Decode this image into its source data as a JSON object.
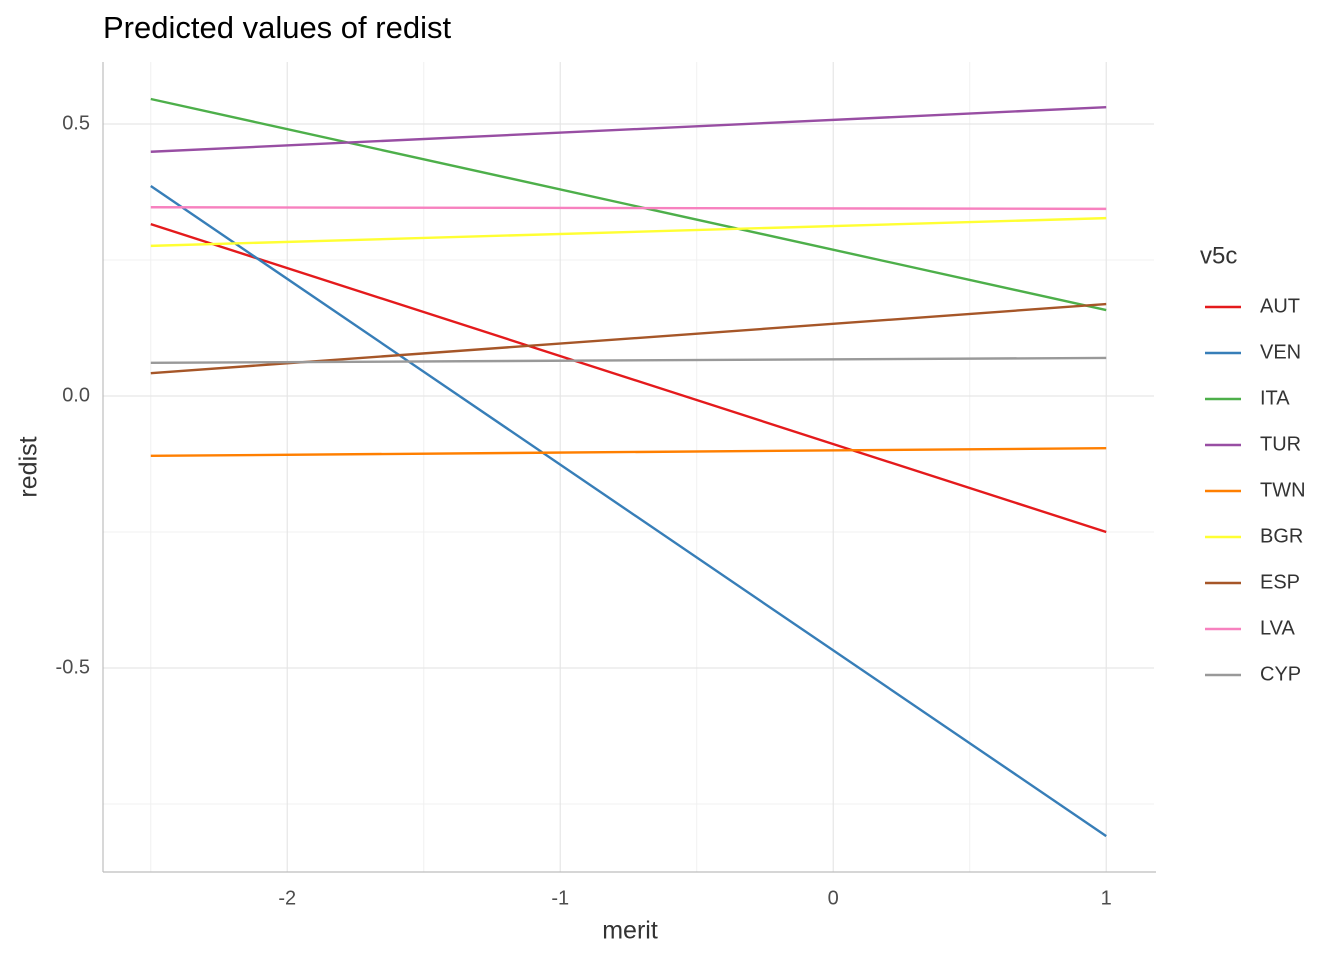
{
  "chart_data": {
    "type": "line",
    "title": "Predicted values of redist",
    "x_label": "merit",
    "y_label": "redist",
    "legend_title": "v5c",
    "legend_position": "right",
    "x": [
      -2.5,
      1
    ],
    "series": [
      {
        "name": "AUT",
        "color": "#e41a1c",
        "values": [
          0.316,
          -0.25
        ]
      },
      {
        "name": "VEN",
        "color": "#377eb8",
        "values": [
          0.386,
          -0.809
        ]
      },
      {
        "name": "ITA",
        "color": "#4daf4a",
        "values": [
          0.546,
          0.158
        ]
      },
      {
        "name": "TUR",
        "color": "#984ea3",
        "values": [
          0.449,
          0.531
        ]
      },
      {
        "name": "TWN",
        "color": "#ff7f00",
        "values": [
          -0.11,
          -0.096
        ]
      },
      {
        "name": "BGR",
        "color": "#ffff33",
        "values": [
          0.276,
          0.327
        ]
      },
      {
        "name": "ESP",
        "color": "#a65628",
        "values": [
          0.042,
          0.169
        ]
      },
      {
        "name": "LVA",
        "color": "#f781bf",
        "values": [
          0.347,
          0.344
        ]
      },
      {
        "name": "CYP",
        "color": "#999999",
        "values": [
          0.061,
          0.07
        ]
      }
    ],
    "xlim": [
      -2.675,
      1.175
    ],
    "ylim": [
      -0.875,
      0.614
    ],
    "xticks": [
      -2,
      -1,
      0,
      1
    ],
    "yticks": [
      -0.5,
      {
        "value": 0,
        "label": "0.0"
      },
      0.5
    ],
    "x_minor_ticks": [
      -2.5,
      -1.5,
      -0.5,
      0.5
    ],
    "y_minor_ticks": [
      -0.75,
      -0.25,
      0.25
    ],
    "grid": true
  }
}
